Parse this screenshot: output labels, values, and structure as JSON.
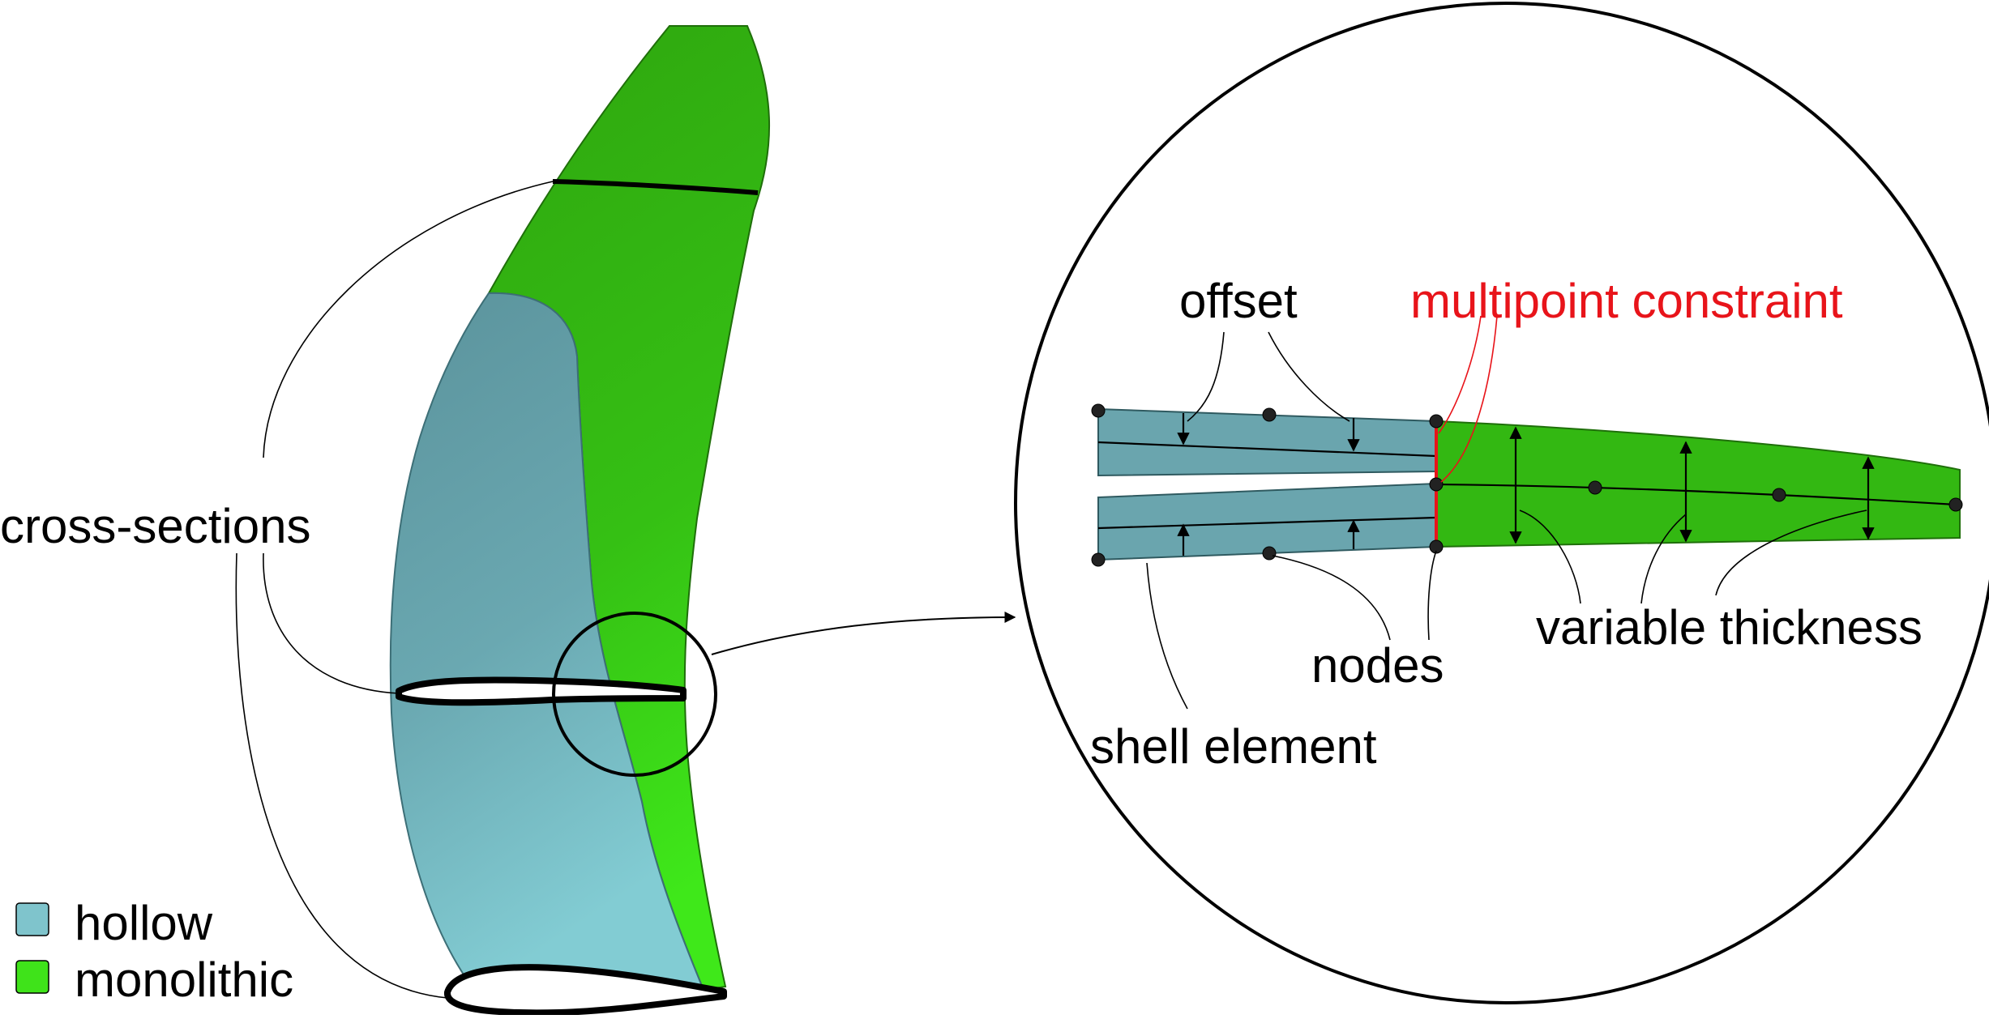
{
  "colors": {
    "hollow": "#6fb3bd",
    "monolithic": "#34c013",
    "constraint": "#e8141a",
    "outline": "#000000"
  },
  "labels": {
    "cross_sections": "cross-sections",
    "offset": "offset",
    "multipoint_constraint": "multipoint constraint",
    "nodes": "nodes",
    "variable_thickness": "variable thickness",
    "shell_element": "shell element"
  },
  "legend": [
    {
      "label": "hollow",
      "color": "#7fc4cc"
    },
    {
      "label": "monolithic",
      "color": "#3fe31a"
    }
  ]
}
